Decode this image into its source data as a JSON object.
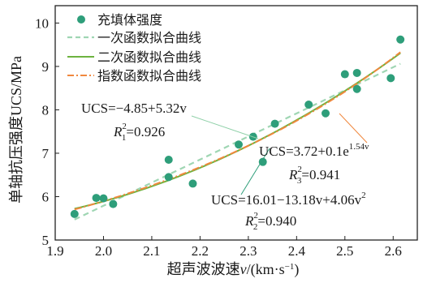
{
  "chart_data": {
    "type": "scatter",
    "xlabel": "超声波波速v/(km·s⁻¹)",
    "ylabel": "单轴抗压强度UCS/MPa",
    "xlim": [
      1.9,
      2.65
    ],
    "ylim": [
      5,
      10.4
    ],
    "xticks": [
      "1.9",
      "2.0",
      "2.1",
      "2.2",
      "2.3",
      "2.4",
      "2.5",
      "2.6"
    ],
    "yticks": [
      "5",
      "6",
      "7",
      "8",
      "9",
      "10"
    ],
    "x_tick_values": [
      1.9,
      2.0,
      2.1,
      2.2,
      2.3,
      2.4,
      2.5,
      2.6
    ],
    "y_tick_values": [
      5,
      6,
      7,
      8,
      9,
      10
    ],
    "grid": false,
    "legend_position": "top-left",
    "legend": [
      {
        "label": "充填体强度",
        "kind": "marker",
        "color": "#2e9e7a"
      },
      {
        "label": "一次函数拟合曲线",
        "kind": "dashed",
        "color": "#9fd6b3"
      },
      {
        "label": "二次函数拟合曲线",
        "kind": "solid",
        "color": "#6db33f"
      },
      {
        "label": "指数函数拟合曲线",
        "kind": "dashdot",
        "color": "#f0883e"
      }
    ],
    "points": [
      {
        "x": 1.94,
        "y": 5.6
      },
      {
        "x": 1.985,
        "y": 5.97
      },
      {
        "x": 2.0,
        "y": 5.96
      },
      {
        "x": 2.02,
        "y": 5.83
      },
      {
        "x": 2.135,
        "y": 6.85
      },
      {
        "x": 2.135,
        "y": 6.45
      },
      {
        "x": 2.185,
        "y": 6.3
      },
      {
        "x": 2.28,
        "y": 7.2
      },
      {
        "x": 2.31,
        "y": 7.38
      },
      {
        "x": 2.33,
        "y": 6.8
      },
      {
        "x": 2.355,
        "y": 7.68
      },
      {
        "x": 2.425,
        "y": 8.12
      },
      {
        "x": 2.46,
        "y": 7.92
      },
      {
        "x": 2.5,
        "y": 8.82
      },
      {
        "x": 2.525,
        "y": 8.85
      },
      {
        "x": 2.525,
        "y": 8.48
      },
      {
        "x": 2.595,
        "y": 8.73
      },
      {
        "x": 2.615,
        "y": 9.62
      }
    ],
    "fit_range": [
      1.94,
      2.615
    ],
    "fits": {
      "linear": {
        "a": -4.85,
        "b": 5.32
      },
      "quadratic": {
        "c0": 16.01,
        "c1": -13.18,
        "c2": 4.06
      },
      "exponential": {
        "a": 3.72,
        "b": 0.1,
        "k": 1.54
      }
    },
    "colors": {
      "marker": "#2e9e7a",
      "linear": "#9fd6b3",
      "quadratic": "#6db33f",
      "exponential": "#f0883e",
      "leader_linear": "#8fd0a8",
      "leader_quadratic": "#2e9e7a",
      "leader_exponential": "#f0883e"
    },
    "annotations": {
      "linear": {
        "line1": "UCS=−4.85+5.32v",
        "r2_label": "R",
        "r2_sub": "1",
        "r2_sup": "2",
        "r2_value": "=0.926"
      },
      "exponential": {
        "line1": "UCS=3.72+0.1e",
        "line1_exp": "1.54v",
        "r2_label": "R",
        "r2_sub": "3",
        "r2_sup": "2",
        "r2_value": "=0.941"
      },
      "quadratic": {
        "line1": "UCS=16.01−13.18v+4.06v",
        "line1_sup": "2",
        "r2_label": "R",
        "r2_sub": "2",
        "r2_sup": "2",
        "r2_value": "=0.940"
      }
    }
  }
}
